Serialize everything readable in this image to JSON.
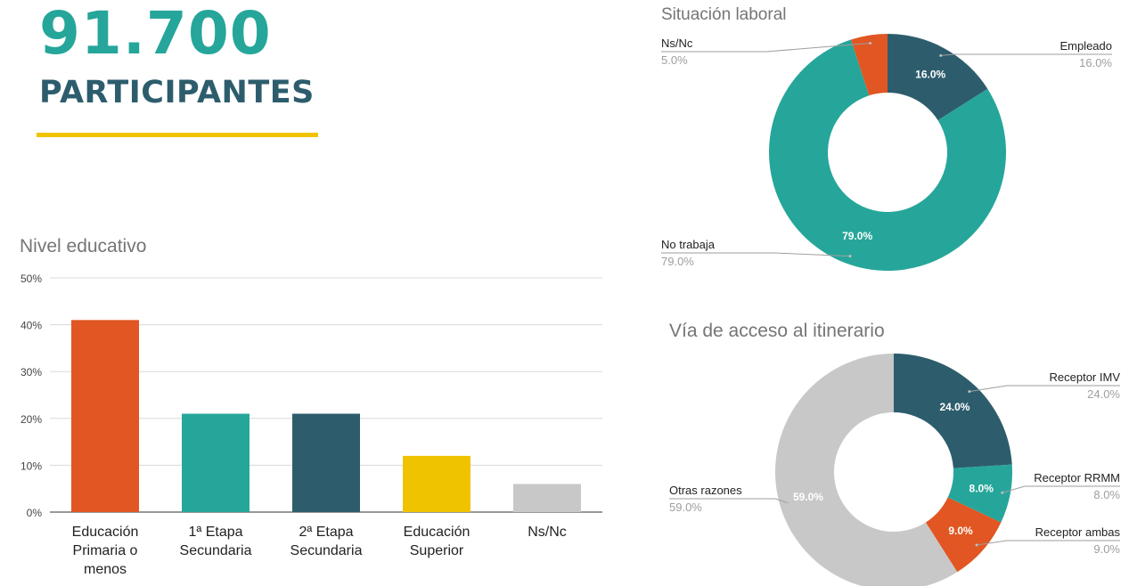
{
  "header": {
    "number": "91.700",
    "label": "PARTICIPANTES"
  },
  "colors": {
    "accent": "#26a69a",
    "dark": "#2d5d6d",
    "orange": "#e15622",
    "yellow": "#f0c300",
    "gray": "#c8c8c8",
    "underline": "#f0c300"
  },
  "chart_data": [
    {
      "type": "bar",
      "title": "Nivel educativo",
      "categories": [
        [
          "Educación",
          "Primaria o",
          "menos"
        ],
        [
          "1ª Etapa",
          "Secundaria"
        ],
        [
          "2ª Etapa",
          "Secundaria"
        ],
        [
          "Educación",
          "Superior"
        ],
        [
          "Ns/Nc"
        ]
      ],
      "values": [
        41,
        21,
        21,
        12,
        6
      ],
      "colors": [
        "#e15622",
        "#26a69a",
        "#2d5d6d",
        "#f0c300",
        "#c8c8c8"
      ],
      "ylim": [
        0,
        50
      ],
      "yticks": [
        0,
        10,
        20,
        30,
        40,
        50
      ],
      "ytick_labels": [
        "0%",
        "10%",
        "20%",
        "30%",
        "40%",
        "50%"
      ],
      "grid": true,
      "legend": "none"
    },
    {
      "type": "pie",
      "title": "Situación laboral",
      "donut": true,
      "slices": [
        {
          "label": "Empleado",
          "value": 16.0,
          "pct": "16.0%",
          "inner": "16.0%",
          "color": "#2d5d6d"
        },
        {
          "label": "No trabaja",
          "value": 79.0,
          "pct": "79.0%",
          "inner": "79.0%",
          "color": "#26a69a"
        },
        {
          "label": "Ns/Nc",
          "value": 5.0,
          "pct": "5.0%",
          "inner": "",
          "color": "#e15622"
        }
      ]
    },
    {
      "type": "pie",
      "title": "Vía de acceso al itinerario",
      "donut": true,
      "slices": [
        {
          "label": "Receptor IMV",
          "value": 24.0,
          "pct": "24.0%",
          "inner": "24.0%",
          "color": "#2d5d6d"
        },
        {
          "label": "Receptor RRMM",
          "value": 8.0,
          "pct": "8.0%",
          "inner": "8.0%",
          "color": "#26a69a"
        },
        {
          "label": "Receptor ambas",
          "value": 9.0,
          "pct": "9.0%",
          "inner": "9.0%",
          "color": "#e15622"
        },
        {
          "label": "Otras razones",
          "value": 59.0,
          "pct": "59.0%",
          "inner": "59.0%",
          "color": "#c8c8c8"
        }
      ]
    }
  ]
}
